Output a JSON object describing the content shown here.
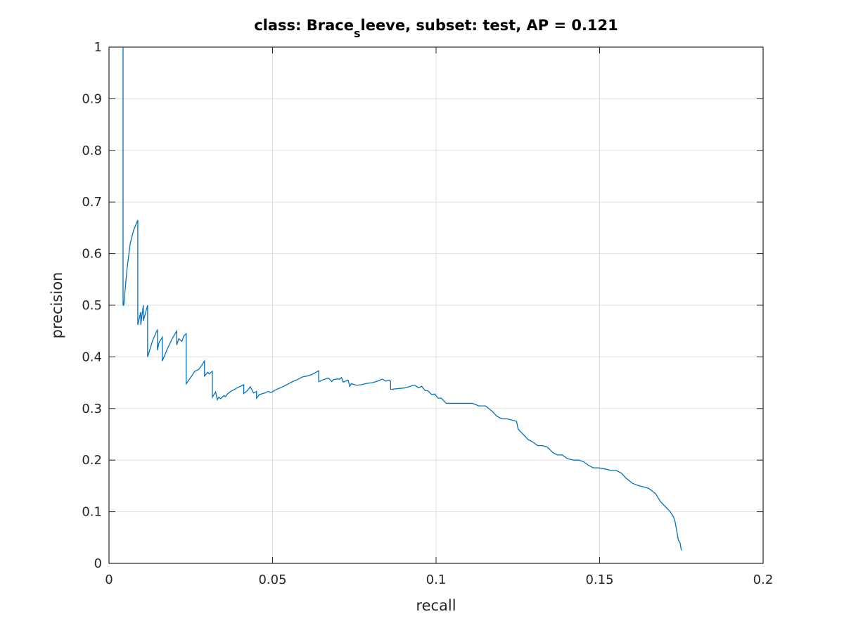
{
  "chart_data": {
    "type": "line",
    "title": {
      "prefix": "class: Brace",
      "subscript": "s",
      "suffix": "leeve, subset: test, AP = 0.121"
    },
    "xlabel": "recall",
    "ylabel": "precision",
    "xlim": [
      0,
      0.2
    ],
    "ylim": [
      0,
      1
    ],
    "x_ticks": [
      0,
      0.05,
      0.1,
      0.15,
      0.2
    ],
    "x_tick_labels": [
      "0",
      "0.05",
      "0.1",
      "0.15",
      "0.2"
    ],
    "y_ticks": [
      0,
      0.1,
      0.2,
      0.3,
      0.4,
      0.5,
      0.6,
      0.7,
      0.8,
      0.9,
      1
    ],
    "y_tick_labels": [
      "0",
      "0.1",
      "0.2",
      "0.3",
      "0.4",
      "0.5",
      "0.6",
      "0.7",
      "0.8",
      "0.9",
      "1"
    ],
    "grid": true,
    "color": "#0072bd",
    "series": [
      {
        "x": [
          0.0043,
          0.0043,
          0.0045,
          0.0055,
          0.0065,
          0.0075,
          0.0088,
          0.0088,
          0.0097,
          0.0097,
          0.0105,
          0.0105,
          0.0118,
          0.0118,
          0.0133,
          0.0148,
          0.0148,
          0.0153,
          0.0163,
          0.0163,
          0.0178,
          0.0193,
          0.0207,
          0.0207,
          0.0213,
          0.0223,
          0.0228,
          0.0236,
          0.0236,
          0.0252,
          0.0262,
          0.0273,
          0.0283,
          0.0292,
          0.0292,
          0.0302,
          0.0306,
          0.0316,
          0.0316,
          0.0326,
          0.0331,
          0.0336,
          0.0341,
          0.0346,
          0.0352,
          0.0356,
          0.0362,
          0.0372,
          0.0392,
          0.0412,
          0.0412,
          0.0422,
          0.0432,
          0.0437,
          0.0442,
          0.0451,
          0.0451,
          0.046,
          0.0476,
          0.0486,
          0.0496,
          0.0506,
          0.0516,
          0.0531,
          0.0546,
          0.0561,
          0.0576,
          0.0591,
          0.0606,
          0.0621,
          0.0641,
          0.0641,
          0.0656,
          0.0671,
          0.0681,
          0.0686,
          0.0696,
          0.0706,
          0.0711,
          0.0716,
          0.0731,
          0.0736,
          0.0741,
          0.0756,
          0.0771,
          0.0791,
          0.0806,
          0.0821,
          0.0836,
          0.0846,
          0.0856,
          0.0861,
          0.0861,
          0.0876,
          0.0891,
          0.0906,
          0.0916,
          0.0926,
          0.0936,
          0.0946,
          0.0956,
          0.0966,
          0.0976,
          0.0986,
          0.0996,
          0.1006,
          0.1016,
          0.1031,
          0.1051,
          0.1071,
          0.1091,
          0.1111,
          0.1131,
          0.1151,
          0.1171,
          0.1186,
          0.1201,
          0.1216,
          0.1231,
          0.1246,
          0.1251,
          0.1266,
          0.1281,
          0.1296,
          0.1311,
          0.1326,
          0.1341,
          0.1356,
          0.1371,
          0.1386,
          0.1401,
          0.1421,
          0.1436,
          0.1451,
          0.1466,
          0.1481,
          0.1496,
          0.1516,
          0.1536,
          0.1551,
          0.1566,
          0.1581,
          0.1591,
          0.1601,
          0.1621,
          0.1636,
          0.1651,
          0.1661,
          0.1671,
          0.1686,
          0.1701,
          0.1716,
          0.1726,
          0.1731,
          0.1741,
          0.1746,
          0.175
        ],
        "y": [
          1.0,
          0.5,
          0.5,
          0.57,
          0.62,
          0.645,
          0.665,
          0.462,
          0.487,
          0.462,
          0.5,
          0.47,
          0.5,
          0.4,
          0.431,
          0.453,
          0.413,
          0.428,
          0.438,
          0.392,
          0.415,
          0.435,
          0.45,
          0.423,
          0.435,
          0.43,
          0.44,
          0.445,
          0.348,
          0.362,
          0.372,
          0.375,
          0.383,
          0.392,
          0.363,
          0.37,
          0.367,
          0.372,
          0.322,
          0.332,
          0.317,
          0.322,
          0.319,
          0.322,
          0.325,
          0.323,
          0.328,
          0.333,
          0.34,
          0.346,
          0.329,
          0.334,
          0.342,
          0.336,
          0.33,
          0.333,
          0.32,
          0.327,
          0.33,
          0.333,
          0.331,
          0.335,
          0.338,
          0.342,
          0.347,
          0.352,
          0.356,
          0.361,
          0.363,
          0.366,
          0.373,
          0.352,
          0.356,
          0.359,
          0.352,
          0.356,
          0.357,
          0.357,
          0.36,
          0.351,
          0.355,
          0.343,
          0.348,
          0.345,
          0.346,
          0.349,
          0.35,
          0.353,
          0.357,
          0.353,
          0.355,
          0.353,
          0.337,
          0.338,
          0.339,
          0.34,
          0.342,
          0.344,
          0.345,
          0.34,
          0.343,
          0.335,
          0.334,
          0.327,
          0.328,
          0.32,
          0.32,
          0.31,
          0.31,
          0.31,
          0.31,
          0.31,
          0.305,
          0.305,
          0.295,
          0.285,
          0.28,
          0.28,
          0.278,
          0.275,
          0.26,
          0.25,
          0.24,
          0.235,
          0.228,
          0.228,
          0.225,
          0.215,
          0.21,
          0.21,
          0.203,
          0.2,
          0.2,
          0.197,
          0.19,
          0.185,
          0.185,
          0.183,
          0.18,
          0.18,
          0.175,
          0.165,
          0.16,
          0.155,
          0.15,
          0.148,
          0.145,
          0.14,
          0.135,
          0.12,
          0.11,
          0.1,
          0.09,
          0.08,
          0.045,
          0.04,
          0.025
        ]
      }
    ]
  }
}
